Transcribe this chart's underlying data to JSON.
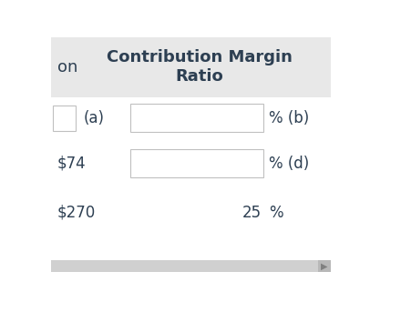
{
  "header_bg": "#e8e8e8",
  "header_text": "Contribution Margin\nRatio",
  "header_text_color": "#2d3f52",
  "header_font_size": 13,
  "bg_color": "#ffffff",
  "text_color": "#2d3f52",
  "row1_label": "(a)",
  "row1_suffix": "% (b)",
  "row2_left_text": "$74",
  "row2_suffix": "% (d)",
  "row3_left_text": "$270",
  "row3_value": "25",
  "row3_suffix": "%",
  "scrollbar_bg": "#d0d0d0",
  "scrollbar_arrow_color": "#808080",
  "input_box_bg": "#ffffff",
  "input_box_border": "#c0c0c0",
  "font_size": 12,
  "header_left_text": "on"
}
